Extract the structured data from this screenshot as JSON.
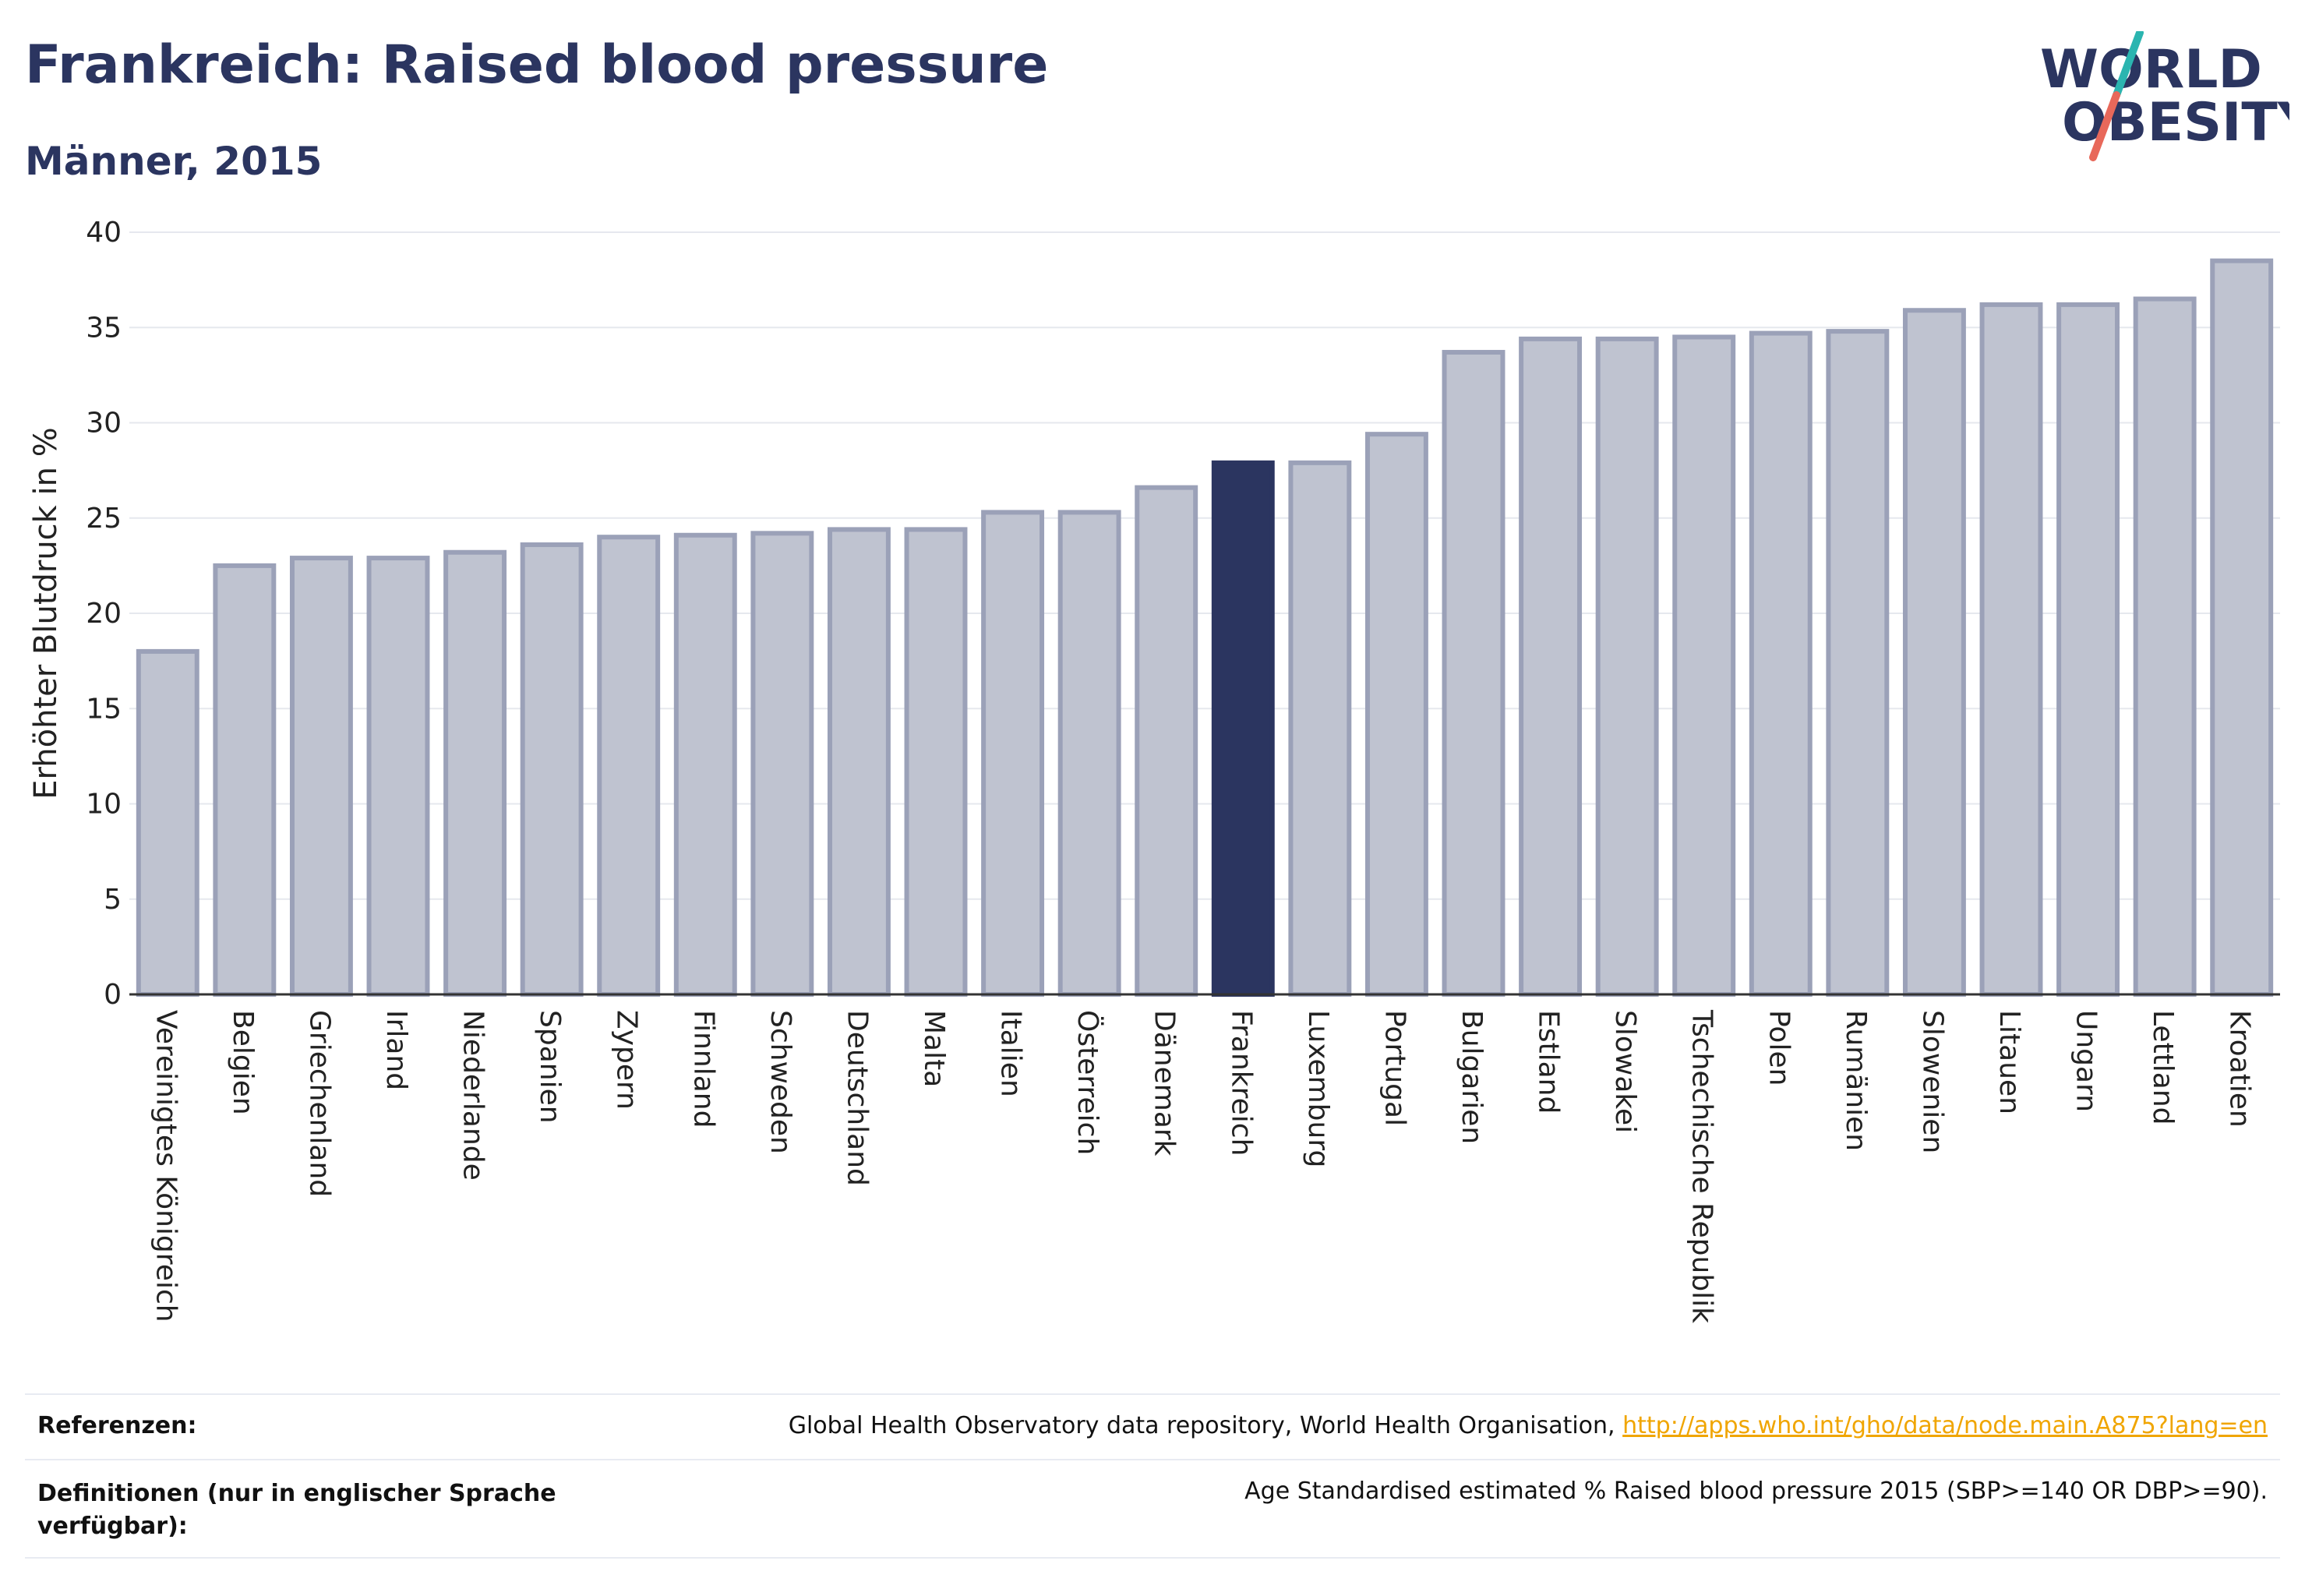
{
  "title": "Frankreich: Raised blood pressure",
  "subtitle": "Männer, 2015",
  "logo": {
    "line1": "WORLD",
    "line2": "OBESITY",
    "accent_colors": [
      "#2bb5b0",
      "#e8685a"
    ]
  },
  "colors": {
    "highlight": "#2b3560",
    "bar": "#bfc3d0",
    "bar_border": "#9ba1b8",
    "grid": "#e6e8ee",
    "axis": "#333333"
  },
  "chart_data": {
    "type": "bar",
    "title": "Frankreich: Raised blood pressure",
    "subtitle": "Männer, 2015",
    "xlabel": "",
    "ylabel": "Erhöhter Blutdruck in %",
    "ylim": [
      0,
      40
    ],
    "yticks": [
      0,
      5,
      10,
      15,
      20,
      25,
      30,
      35,
      40
    ],
    "highlight": "Frankreich",
    "grid": true,
    "categories": [
      "Vereinigtes Königreich",
      "Belgien",
      "Griechenland",
      "Irland",
      "Niederlande",
      "Spanien",
      "Zypern",
      "Finnland",
      "Schweden",
      "Deutschland",
      "Malta",
      "Italien",
      "Österreich",
      "Dänemark",
      "Frankreich",
      "Luxemburg",
      "Portugal",
      "Bulgarien",
      "Estland",
      "Slowakei",
      "Tschechische Republik",
      "Polen",
      "Rumänien",
      "Slowenien",
      "Litauen",
      "Ungarn",
      "Lettland",
      "Kroatien"
    ],
    "values": [
      18.0,
      22.5,
      22.9,
      22.9,
      23.2,
      23.6,
      24.0,
      24.1,
      24.2,
      24.4,
      24.4,
      25.3,
      25.3,
      26.6,
      27.9,
      27.9,
      29.4,
      33.7,
      34.4,
      34.4,
      34.5,
      34.7,
      34.8,
      35.9,
      36.2,
      36.2,
      36.5,
      38.5
    ]
  },
  "footer": {
    "references_label": "Referenzen:",
    "references_text": "Global Health Observatory data repository, World Health Organisation,",
    "references_link": "http://apps.who.int/gho/data/node.main.A875?lang=en",
    "definitions_label": "Definitionen (nur in englischer Sprache verfügbar):",
    "definitions_text": "Age Standardised estimated % Raised blood pressure 2015 (SBP>=140 OR DBP>=90)."
  }
}
